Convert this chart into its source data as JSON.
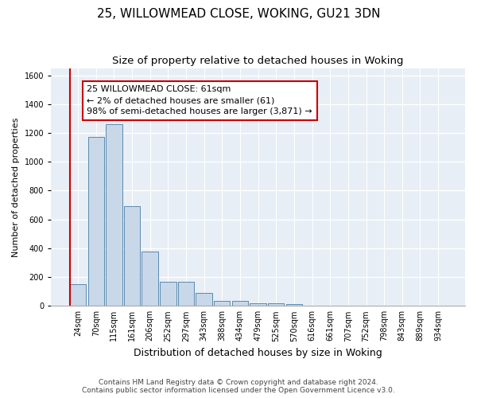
{
  "title1": "25, WILLOWMEAD CLOSE, WOKING, GU21 3DN",
  "title2": "Size of property relative to detached houses in Woking",
  "xlabel": "Distribution of detached houses by size in Woking",
  "ylabel": "Number of detached properties",
  "bar_color": "#c8d8e8",
  "bar_edge_color": "#5a8ab0",
  "background_color": "#e8eef5",
  "grid_color": "#ffffff",
  "annotation_line1": "25 WILLOWMEAD CLOSE: 61sqm",
  "annotation_line2": "← 2% of detached houses are smaller (61)",
  "annotation_line3": "98% of semi-detached houses are larger (3,871) →",
  "vline_color": "#cc0000",
  "annotation_box_color": "#cc0000",
  "categories": [
    "24sqm",
    "70sqm",
    "115sqm",
    "161sqm",
    "206sqm",
    "252sqm",
    "297sqm",
    "343sqm",
    "388sqm",
    "434sqm",
    "479sqm",
    "525sqm",
    "570sqm",
    "616sqm",
    "661sqm",
    "707sqm",
    "752sqm",
    "798sqm",
    "843sqm",
    "889sqm",
    "934sqm"
  ],
  "values": [
    150,
    1175,
    1260,
    690,
    375,
    165,
    165,
    90,
    35,
    35,
    20,
    20,
    15,
    0,
    0,
    0,
    0,
    0,
    0,
    0,
    0
  ],
  "ylim": [
    0,
    1650
  ],
  "yticks": [
    0,
    200,
    400,
    600,
    800,
    1000,
    1200,
    1400,
    1600
  ],
  "footer1": "Contains HM Land Registry data © Crown copyright and database right 2024.",
  "footer2": "Contains public sector information licensed under the Open Government Licence v3.0.",
  "title1_fontsize": 11,
  "title2_fontsize": 9.5,
  "xlabel_fontsize": 9,
  "ylabel_fontsize": 8,
  "tick_fontsize": 7,
  "footer_fontsize": 6.5,
  "annot_fontsize": 8
}
